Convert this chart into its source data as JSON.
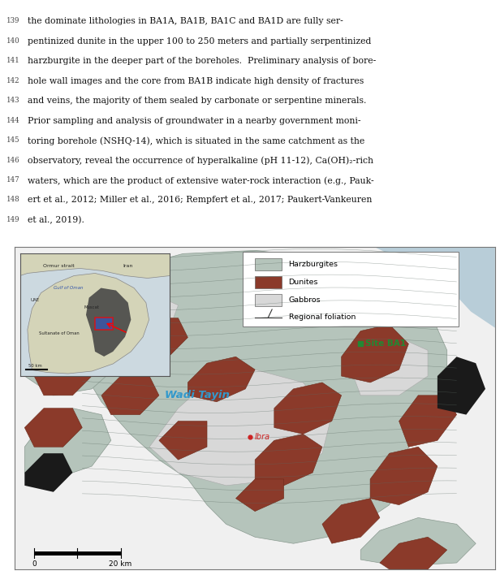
{
  "fig_width": 6.16,
  "fig_height": 7.08,
  "dpi": 100,
  "bg_color": "#ffffff",
  "text_lines": [
    {
      "line_num": "139",
      "text": "the dominate lithologies in BA1A, BA1B, BA1C and BA1D are fully ser-"
    },
    {
      "line_num": "140",
      "text": "pentinized dunite in the upper 100 to 250 meters and partially serpentinized"
    },
    {
      "line_num": "141",
      "text": "harzburgite in the deeper part of the boreholes.  Preliminary analysis of bore-"
    },
    {
      "line_num": "142",
      "text": "hole wall images and the core from BA1B indicate high density of fractures"
    },
    {
      "line_num": "143",
      "text": "and veins, the majority of them sealed by carbonate or serpentine minerals."
    },
    {
      "line_num": "144",
      "text": "Prior sampling and analysis of groundwater in a nearby government moni-"
    },
    {
      "line_num": "145",
      "text": "toring borehole (NSHQ-14), which is situated in the same catchment as the"
    },
    {
      "line_num": "146",
      "text": "observatory, reveal the occurrence of hyperalkaline (pH 11-12), Ca(OH)₂-rich"
    },
    {
      "line_num": "147",
      "text": "waters, which are the product of extensive water-rock interaction (e.g., Pauk-"
    },
    {
      "line_num": "148",
      "text": "ert et al., 2012; Miller et al., 2016; Rempfert et al., 2017; Paukert-Vankeuren"
    },
    {
      "line_num": "149",
      "text": "et al., 2019)."
    }
  ],
  "text_fontsize": 7.8,
  "line_num_fontsize": 6.2,
  "text_color": "#111111",
  "line_num_color": "#444444",
  "harzburgite_color": "#b5c4bb",
  "dunite_color": "#8b3a2a",
  "gabbro_color": "#d8d8d8",
  "ocean_color": "#b8cdd8",
  "map_border_color": "#777777",
  "wadi_tayin_label": "Wadi Tayin",
  "wadi_tayin_color": "#3399cc",
  "site_ba1_label": "Site BA1",
  "site_ba1_color": "#228833",
  "ibra_label": "Ibra",
  "ibra_color": "#cc2222",
  "legend_items": [
    "Harzburgites",
    "Dunites",
    "Gabbros",
    "Regional foliation"
  ],
  "legend_colors": [
    "#b5c4bb",
    "#8b3a2a",
    "#d8d8d8",
    "none"
  ],
  "scalebar_label": "20 km",
  "inset_labels": [
    "Ormur strait",
    "Iran",
    "UAE",
    "Gulf of Oman",
    "Muscat",
    "Sultanate of Oman",
    "50 km"
  ]
}
